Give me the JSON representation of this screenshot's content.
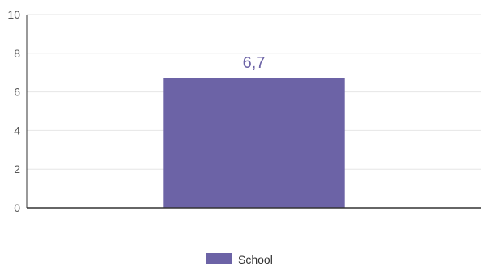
{
  "chart_data": {
    "type": "bar",
    "categories": [
      ""
    ],
    "series": [
      {
        "name": "School",
        "values": [
          6.7
        ],
        "color": "#6c63a6"
      }
    ],
    "data_labels": [
      "6,7"
    ],
    "yticks": [
      "0",
      "2",
      "4",
      "6",
      "8",
      "10"
    ],
    "ylim": [
      0,
      10
    ],
    "grid": true,
    "legend": "bottom-center",
    "grid_color": "#e6e6e6",
    "axis_color": "#333333",
    "label_color": "#6c63a6"
  }
}
